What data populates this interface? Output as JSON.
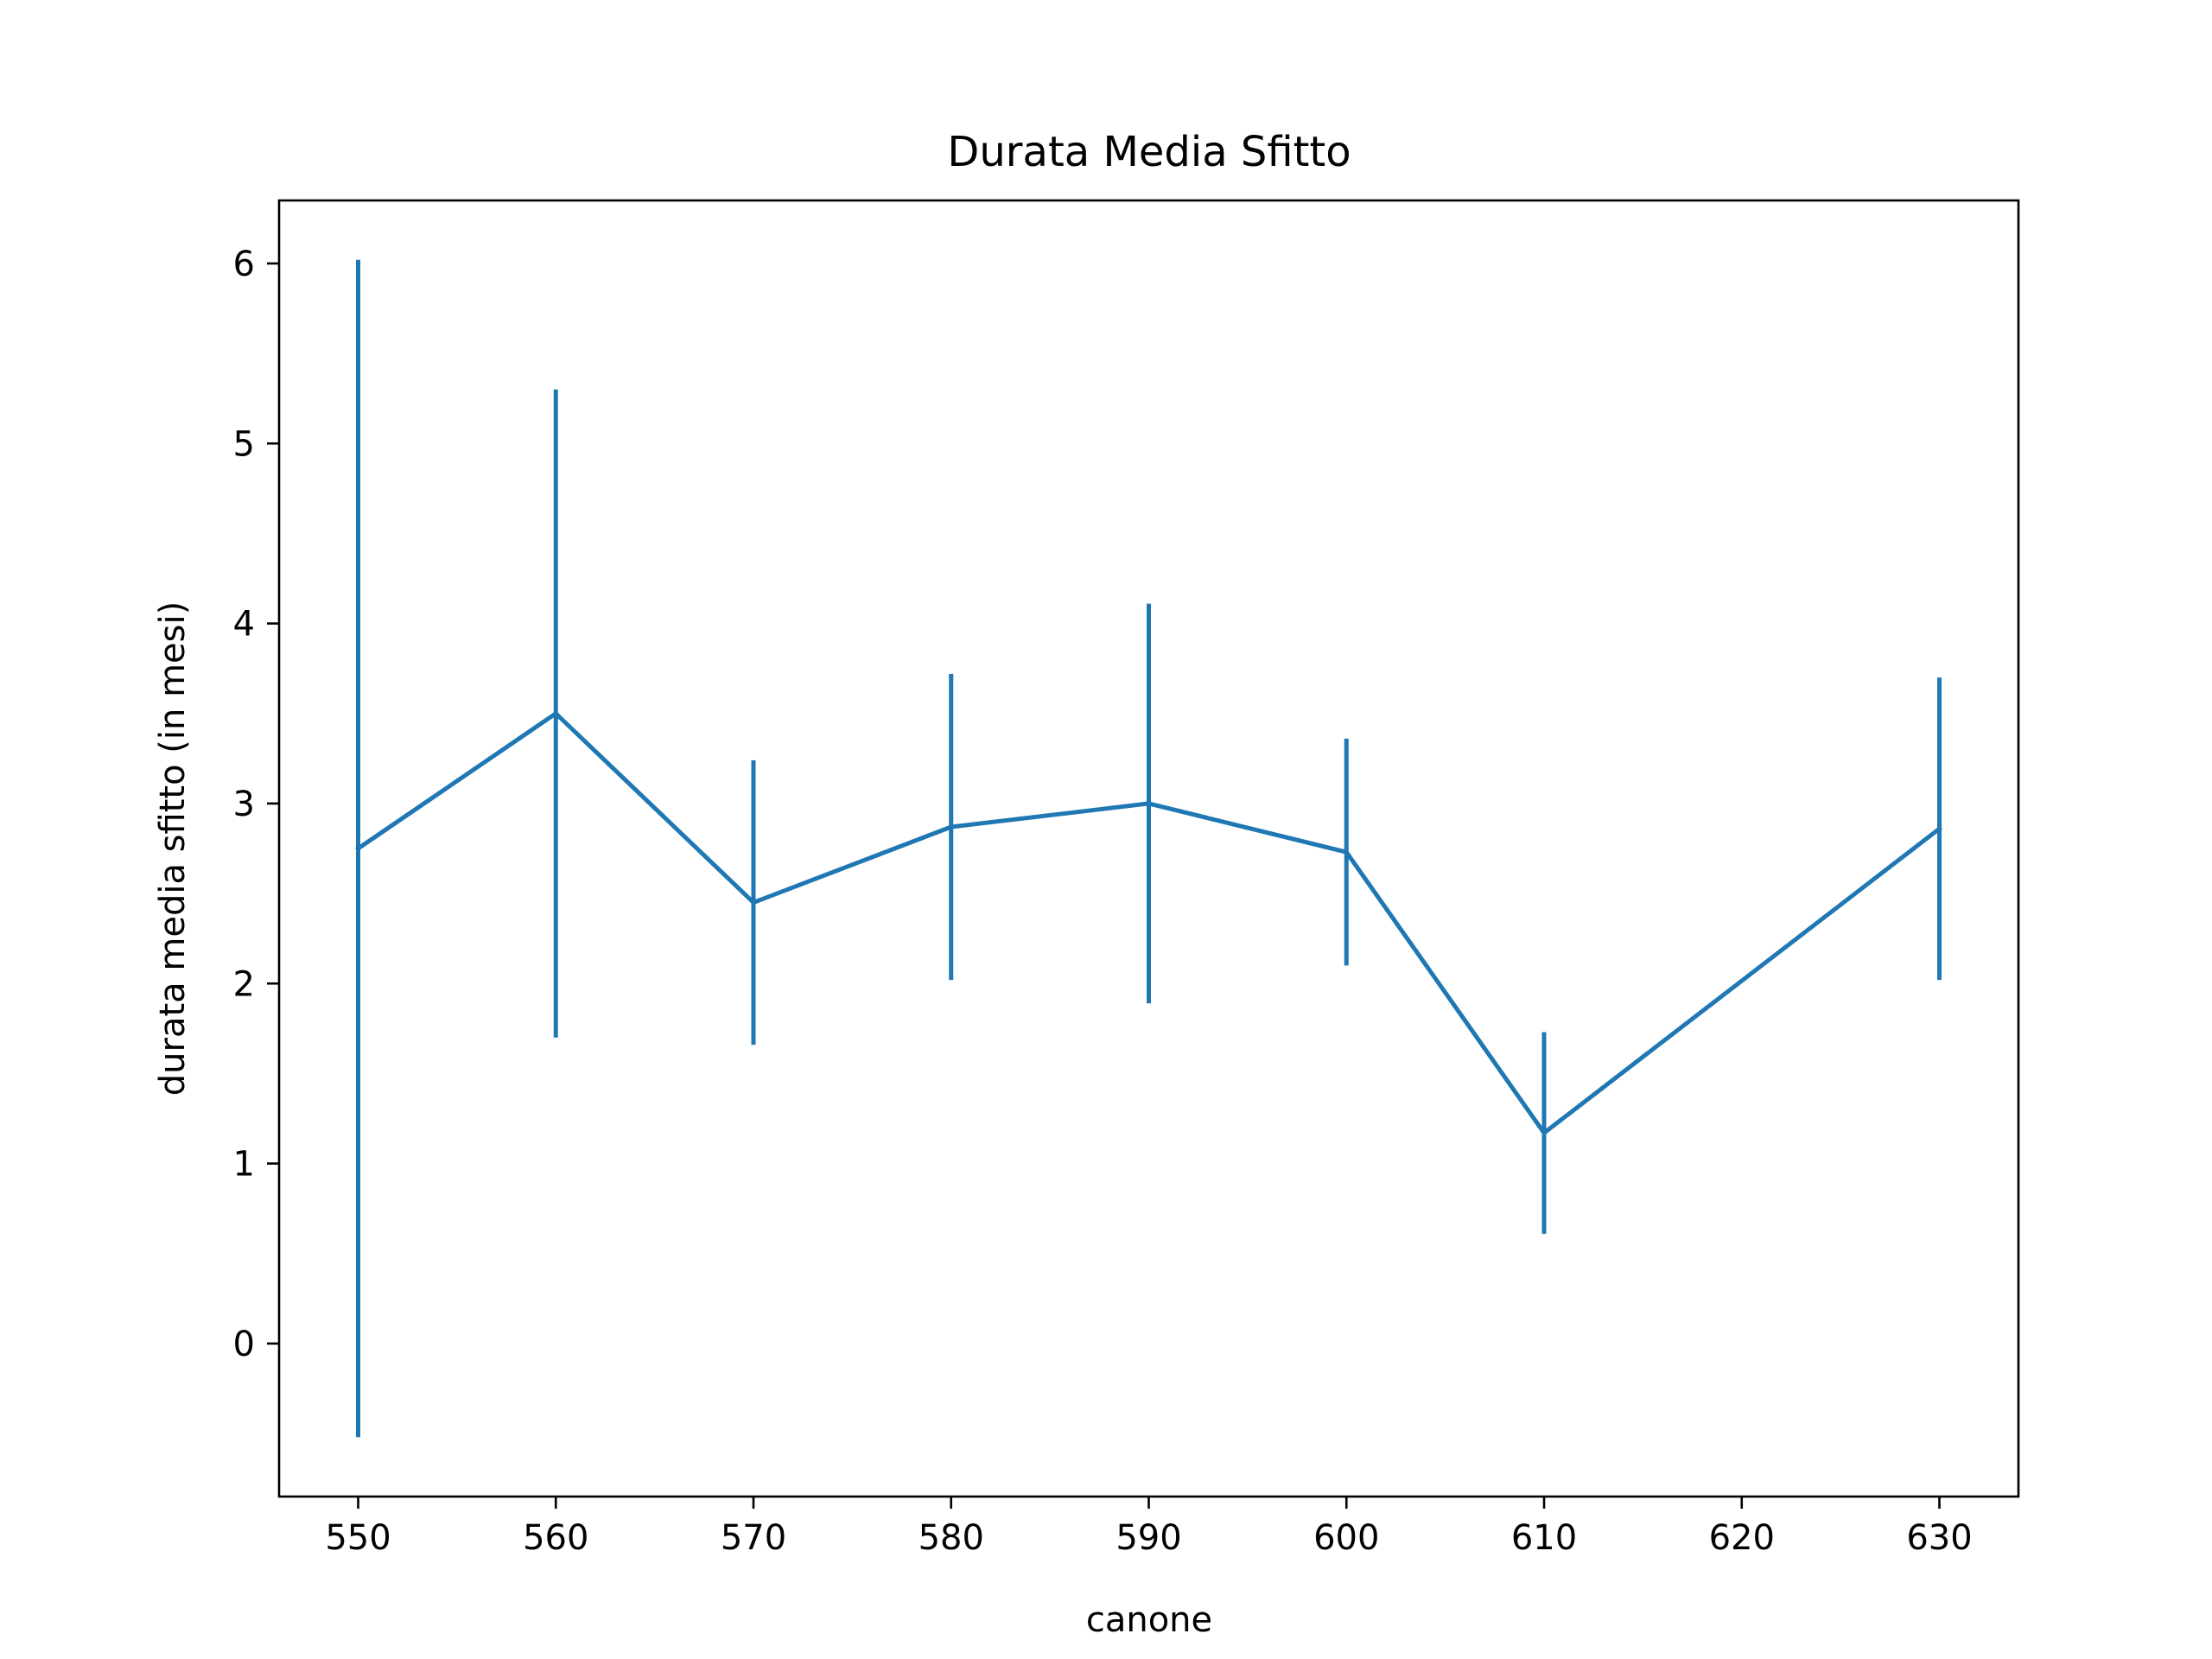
{
  "chart_data": {
    "type": "line",
    "title": "Durata Media Sfitto",
    "xlabel": "canone",
    "ylabel": "durata media sfitto (in mesi)",
    "xlim": [
      546,
      634
    ],
    "ylim": [
      -0.85,
      6.35
    ],
    "xticks": [
      550,
      560,
      570,
      580,
      590,
      600,
      610,
      620,
      630
    ],
    "yticks": [
      0,
      1,
      2,
      3,
      4,
      5,
      6
    ],
    "grid": false,
    "error_bars": true,
    "color": "#1f77b4",
    "series": [
      {
        "x": [
          550,
          560,
          570,
          580,
          590,
          600,
          610,
          630
        ],
        "y": [
          2.75,
          3.5,
          2.45,
          2.87,
          3.0,
          2.73,
          1.17,
          2.86
        ],
        "err": [
          3.27,
          1.8,
          0.79,
          0.85,
          1.11,
          0.63,
          0.56,
          0.84
        ]
      }
    ]
  }
}
